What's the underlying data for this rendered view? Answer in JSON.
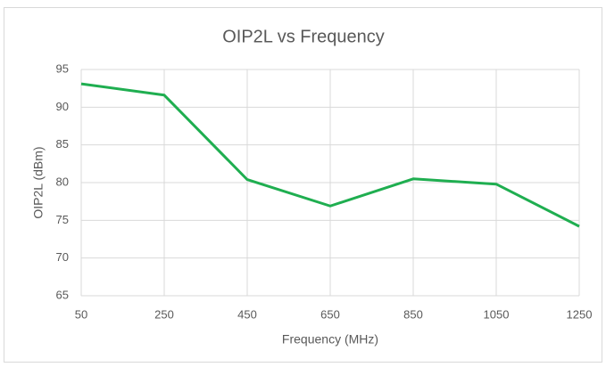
{
  "chart_data": {
    "type": "line",
    "title": "OIP2L vs Frequency",
    "x_label": "Frequency (MHz)",
    "y_label": "OIP2L (dBm)",
    "x": [
      50,
      250,
      450,
      650,
      850,
      1050,
      1250
    ],
    "series": [
      {
        "name": "OIP2L",
        "color": "#1fae50",
        "values": [
          93.1,
          91.6,
          80.4,
          76.9,
          80.5,
          79.8,
          74.2
        ]
      }
    ],
    "xlim": [
      50,
      1250
    ],
    "xticks": [
      50,
      250,
      450,
      650,
      850,
      1050,
      1250
    ],
    "ylim": [
      65,
      95
    ],
    "yticks": [
      65,
      70,
      75,
      80,
      85,
      90,
      95
    ],
    "grid": true
  }
}
